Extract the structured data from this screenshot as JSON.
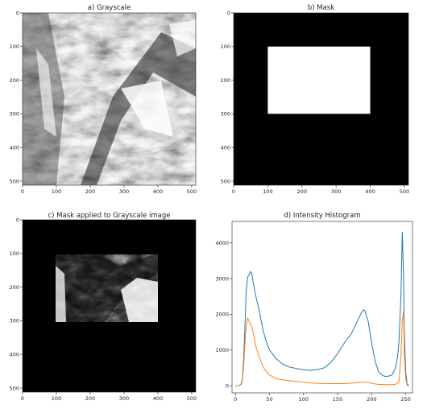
{
  "chart_data": [
    {
      "type": "image",
      "title": "a) Grayscale",
      "xticks": [
        0,
        100,
        200,
        300,
        400,
        500
      ],
      "yticks": [
        0,
        100,
        200,
        300,
        400,
        500
      ],
      "xlim": [
        0,
        512
      ],
      "ylim": [
        512,
        0
      ]
    },
    {
      "type": "image",
      "title": "b) Mask",
      "xticks": [
        0,
        100,
        200,
        300,
        400,
        500
      ],
      "yticks": [
        0,
        100,
        200,
        300,
        400,
        500
      ],
      "xlim": [
        0,
        512
      ],
      "ylim": [
        512,
        0
      ],
      "mask_rect": {
        "x0": 100,
        "x1": 400,
        "y0": 100,
        "y1": 300
      }
    },
    {
      "type": "image",
      "title": "c) Mask applied to Grayscale image",
      "xticks": [
        0,
        100,
        200,
        300,
        400,
        500
      ],
      "yticks": [
        0,
        100,
        200,
        300,
        400,
        500
      ],
      "xlim": [
        0,
        512
      ],
      "ylim": [
        512,
        0
      ],
      "mask_rect": {
        "x0": 100,
        "x1": 400,
        "y0": 100,
        "y1": 300
      }
    },
    {
      "type": "line",
      "title": "d) Intensity Histogram",
      "xticks": [
        0,
        50,
        100,
        150,
        200,
        250
      ],
      "yticks": [
        0,
        1000,
        2000,
        3000,
        4000
      ],
      "xlim": [
        -5,
        260
      ],
      "ylim": [
        -200,
        4600
      ],
      "series": [
        {
          "color": "#1f77b4",
          "x": [
            0,
            5,
            8,
            10,
            12,
            14,
            16,
            18,
            20,
            22,
            24,
            26,
            28,
            30,
            35,
            40,
            45,
            50,
            60,
            70,
            80,
            90,
            100,
            110,
            120,
            130,
            140,
            150,
            160,
            170,
            175,
            180,
            185,
            188,
            190,
            195,
            200,
            205,
            210,
            215,
            220,
            225,
            230,
            235,
            238,
            240,
            243,
            245,
            247,
            248,
            250,
            252,
            255
          ],
          "y": [
            0,
            5,
            40,
            150,
            700,
            1700,
            2700,
            3050,
            3100,
            3200,
            3150,
            2900,
            2700,
            2500,
            2100,
            1600,
            1250,
            1000,
            750,
            600,
            520,
            480,
            450,
            430,
            450,
            500,
            650,
            900,
            1200,
            1450,
            1650,
            1850,
            2050,
            2130,
            2100,
            1800,
            1200,
            700,
            400,
            300,
            260,
            270,
            300,
            500,
            800,
            1200,
            2500,
            4300,
            3000,
            1500,
            400,
            50,
            0
          ]
        },
        {
          "color": "#ff7f0e",
          "x": [
            0,
            5,
            8,
            10,
            12,
            14,
            16,
            18,
            20,
            22,
            24,
            26,
            28,
            30,
            35,
            40,
            45,
            50,
            60,
            70,
            80,
            90,
            100,
            110,
            120,
            130,
            140,
            150,
            160,
            170,
            180,
            185,
            190,
            195,
            200,
            205,
            210,
            220,
            230,
            235,
            240,
            243,
            245,
            247,
            248,
            250,
            252,
            255
          ],
          "y": [
            0,
            5,
            30,
            120,
            500,
            1200,
            1700,
            1900,
            1800,
            1750,
            1650,
            1500,
            1300,
            1100,
            800,
            550,
            400,
            300,
            200,
            160,
            140,
            120,
            100,
            80,
            70,
            60,
            60,
            60,
            60,
            70,
            90,
            100,
            100,
            90,
            70,
            50,
            40,
            30,
            30,
            40,
            100,
            800,
            1800,
            2100,
            900,
            200,
            20,
            0
          ]
        }
      ]
    }
  ]
}
